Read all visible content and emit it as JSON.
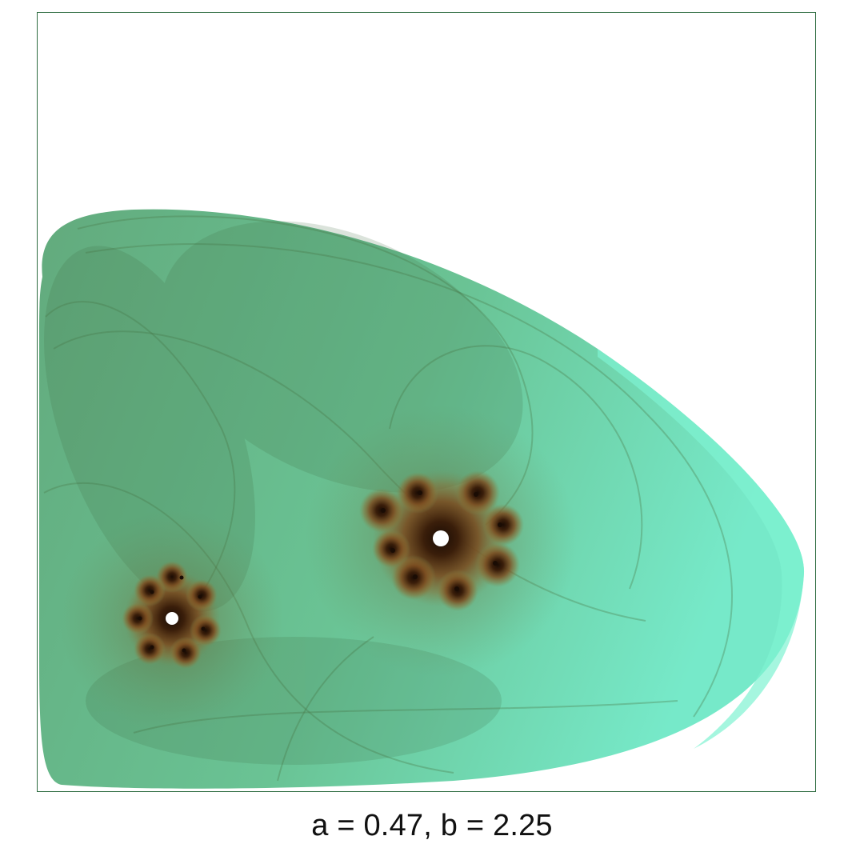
{
  "caption": "a = 0.47, b = 2.25",
  "colors": {
    "frame": "#2e6b40",
    "fill_outer": "#6fe8c6",
    "fill_mid": "#5fbf95",
    "fill_inner": "#4d9a6c",
    "vortex_dark": "#3a1e0a",
    "vortex_brown": "#7a4a1e"
  }
}
